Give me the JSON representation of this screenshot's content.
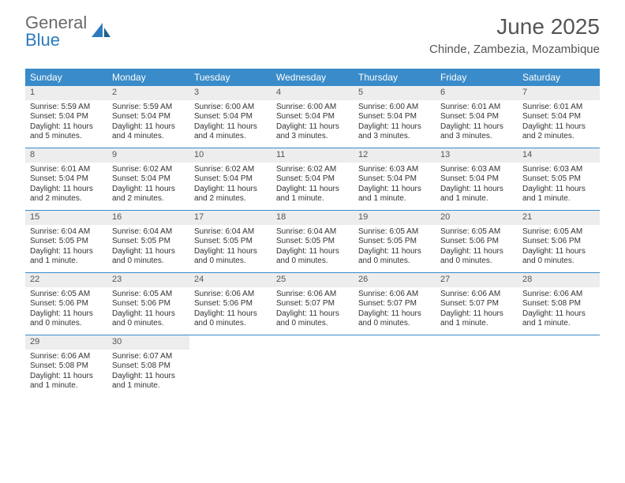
{
  "logo": {
    "text1": "General",
    "text2": "Blue"
  },
  "title": "June 2025",
  "location": "Chinde, Zambezia, Mozambique",
  "colors": {
    "header_bg": "#3a8bc9",
    "daynum_bg": "#ededed",
    "week_border": "#3a8bc9",
    "text": "#333333",
    "muted": "#555555"
  },
  "weekdays": [
    "Sunday",
    "Monday",
    "Tuesday",
    "Wednesday",
    "Thursday",
    "Friday",
    "Saturday"
  ],
  "weeks": [
    [
      {
        "n": "1",
        "sr": "Sunrise: 5:59 AM",
        "ss": "Sunset: 5:04 PM",
        "dl1": "Daylight: 11 hours",
        "dl2": "and 5 minutes."
      },
      {
        "n": "2",
        "sr": "Sunrise: 5:59 AM",
        "ss": "Sunset: 5:04 PM",
        "dl1": "Daylight: 11 hours",
        "dl2": "and 4 minutes."
      },
      {
        "n": "3",
        "sr": "Sunrise: 6:00 AM",
        "ss": "Sunset: 5:04 PM",
        "dl1": "Daylight: 11 hours",
        "dl2": "and 4 minutes."
      },
      {
        "n": "4",
        "sr": "Sunrise: 6:00 AM",
        "ss": "Sunset: 5:04 PM",
        "dl1": "Daylight: 11 hours",
        "dl2": "and 3 minutes."
      },
      {
        "n": "5",
        "sr": "Sunrise: 6:00 AM",
        "ss": "Sunset: 5:04 PM",
        "dl1": "Daylight: 11 hours",
        "dl2": "and 3 minutes."
      },
      {
        "n": "6",
        "sr": "Sunrise: 6:01 AM",
        "ss": "Sunset: 5:04 PM",
        "dl1": "Daylight: 11 hours",
        "dl2": "and 3 minutes."
      },
      {
        "n": "7",
        "sr": "Sunrise: 6:01 AM",
        "ss": "Sunset: 5:04 PM",
        "dl1": "Daylight: 11 hours",
        "dl2": "and 2 minutes."
      }
    ],
    [
      {
        "n": "8",
        "sr": "Sunrise: 6:01 AM",
        "ss": "Sunset: 5:04 PM",
        "dl1": "Daylight: 11 hours",
        "dl2": "and 2 minutes."
      },
      {
        "n": "9",
        "sr": "Sunrise: 6:02 AM",
        "ss": "Sunset: 5:04 PM",
        "dl1": "Daylight: 11 hours",
        "dl2": "and 2 minutes."
      },
      {
        "n": "10",
        "sr": "Sunrise: 6:02 AM",
        "ss": "Sunset: 5:04 PM",
        "dl1": "Daylight: 11 hours",
        "dl2": "and 2 minutes."
      },
      {
        "n": "11",
        "sr": "Sunrise: 6:02 AM",
        "ss": "Sunset: 5:04 PM",
        "dl1": "Daylight: 11 hours",
        "dl2": "and 1 minute."
      },
      {
        "n": "12",
        "sr": "Sunrise: 6:03 AM",
        "ss": "Sunset: 5:04 PM",
        "dl1": "Daylight: 11 hours",
        "dl2": "and 1 minute."
      },
      {
        "n": "13",
        "sr": "Sunrise: 6:03 AM",
        "ss": "Sunset: 5:04 PM",
        "dl1": "Daylight: 11 hours",
        "dl2": "and 1 minute."
      },
      {
        "n": "14",
        "sr": "Sunrise: 6:03 AM",
        "ss": "Sunset: 5:05 PM",
        "dl1": "Daylight: 11 hours",
        "dl2": "and 1 minute."
      }
    ],
    [
      {
        "n": "15",
        "sr": "Sunrise: 6:04 AM",
        "ss": "Sunset: 5:05 PM",
        "dl1": "Daylight: 11 hours",
        "dl2": "and 1 minute."
      },
      {
        "n": "16",
        "sr": "Sunrise: 6:04 AM",
        "ss": "Sunset: 5:05 PM",
        "dl1": "Daylight: 11 hours",
        "dl2": "and 0 minutes."
      },
      {
        "n": "17",
        "sr": "Sunrise: 6:04 AM",
        "ss": "Sunset: 5:05 PM",
        "dl1": "Daylight: 11 hours",
        "dl2": "and 0 minutes."
      },
      {
        "n": "18",
        "sr": "Sunrise: 6:04 AM",
        "ss": "Sunset: 5:05 PM",
        "dl1": "Daylight: 11 hours",
        "dl2": "and 0 minutes."
      },
      {
        "n": "19",
        "sr": "Sunrise: 6:05 AM",
        "ss": "Sunset: 5:05 PM",
        "dl1": "Daylight: 11 hours",
        "dl2": "and 0 minutes."
      },
      {
        "n": "20",
        "sr": "Sunrise: 6:05 AM",
        "ss": "Sunset: 5:06 PM",
        "dl1": "Daylight: 11 hours",
        "dl2": "and 0 minutes."
      },
      {
        "n": "21",
        "sr": "Sunrise: 6:05 AM",
        "ss": "Sunset: 5:06 PM",
        "dl1": "Daylight: 11 hours",
        "dl2": "and 0 minutes."
      }
    ],
    [
      {
        "n": "22",
        "sr": "Sunrise: 6:05 AM",
        "ss": "Sunset: 5:06 PM",
        "dl1": "Daylight: 11 hours",
        "dl2": "and 0 minutes."
      },
      {
        "n": "23",
        "sr": "Sunrise: 6:05 AM",
        "ss": "Sunset: 5:06 PM",
        "dl1": "Daylight: 11 hours",
        "dl2": "and 0 minutes."
      },
      {
        "n": "24",
        "sr": "Sunrise: 6:06 AM",
        "ss": "Sunset: 5:06 PM",
        "dl1": "Daylight: 11 hours",
        "dl2": "and 0 minutes."
      },
      {
        "n": "25",
        "sr": "Sunrise: 6:06 AM",
        "ss": "Sunset: 5:07 PM",
        "dl1": "Daylight: 11 hours",
        "dl2": "and 0 minutes."
      },
      {
        "n": "26",
        "sr": "Sunrise: 6:06 AM",
        "ss": "Sunset: 5:07 PM",
        "dl1": "Daylight: 11 hours",
        "dl2": "and 0 minutes."
      },
      {
        "n": "27",
        "sr": "Sunrise: 6:06 AM",
        "ss": "Sunset: 5:07 PM",
        "dl1": "Daylight: 11 hours",
        "dl2": "and 1 minute."
      },
      {
        "n": "28",
        "sr": "Sunrise: 6:06 AM",
        "ss": "Sunset: 5:08 PM",
        "dl1": "Daylight: 11 hours",
        "dl2": "and 1 minute."
      }
    ],
    [
      {
        "n": "29",
        "sr": "Sunrise: 6:06 AM",
        "ss": "Sunset: 5:08 PM",
        "dl1": "Daylight: 11 hours",
        "dl2": "and 1 minute."
      },
      {
        "n": "30",
        "sr": "Sunrise: 6:07 AM",
        "ss": "Sunset: 5:08 PM",
        "dl1": "Daylight: 11 hours",
        "dl2": "and 1 minute."
      },
      null,
      null,
      null,
      null,
      null
    ]
  ]
}
